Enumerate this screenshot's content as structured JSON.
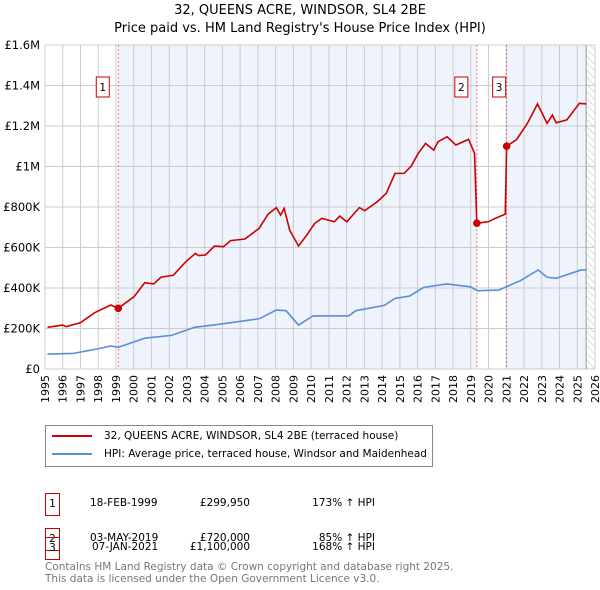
{
  "title": "32, QUEENS ACRE, WINDSOR, SL4 2BE",
  "subtitle": "Price paid vs. HM Land Registry's House Price Index (HPI)",
  "chart_data": {
    "type": "line",
    "title": "32, QUEENS ACRE, WINDSOR, SL4 2BE",
    "subtitle": "Price paid vs. HM Land Registry's House Price Index (HPI)",
    "xlim": [
      1995,
      2026
    ],
    "ylim": [
      0,
      1600000
    ],
    "xticks": [
      "1995",
      "1996",
      "1997",
      "1998",
      "1999",
      "2000",
      "2001",
      "2002",
      "2003",
      "2004",
      "2005",
      "2006",
      "2007",
      "2008",
      "2009",
      "2010",
      "2011",
      "2012",
      "2013",
      "2014",
      "2015",
      "2016",
      "2017",
      "2018",
      "2019",
      "2020",
      "2021",
      "2022",
      "2023",
      "2024",
      "2025",
      "2026"
    ],
    "yticks": [
      {
        "v": 0,
        "l": "£0"
      },
      {
        "v": 200000,
        "l": "£200K"
      },
      {
        "v": 400000,
        "l": "£400K"
      },
      {
        "v": 600000,
        "l": "£600K"
      },
      {
        "v": 800000,
        "l": "£800K"
      },
      {
        "v": 1000000,
        "l": "£1M"
      },
      {
        "v": 1200000,
        "l": "£1.2M"
      },
      {
        "v": 1400000,
        "l": "£1.4M"
      },
      {
        "v": 1600000,
        "l": "£1.6M"
      }
    ],
    "grid": true,
    "series": [
      {
        "name": "32, QUEENS ACRE, WINDSOR, SL4 2BE (terraced house)",
        "color": "#cc0000",
        "x": [
          1995.14,
          1996.0,
          1996.19,
          1997.0,
          1997.8,
          1998.71,
          1999.13,
          2000.02,
          2000.62,
          2001.13,
          2001.53,
          2002.23,
          2002.94,
          2003.48,
          2003.65,
          2004.05,
          2004.55,
          2005.06,
          2005.46,
          2006.27,
          2007.07,
          2007.58,
          2008.04,
          2008.28,
          2008.48,
          2008.79,
          2009.29,
          2009.8,
          2010.2,
          2010.6,
          2011.31,
          2011.61,
          2012.01,
          2012.72,
          2013.02,
          2013.73,
          2014.23,
          2014.73,
          2015.24,
          2015.64,
          2016.04,
          2016.45,
          2016.91,
          2017.15,
          2017.66,
          2018.16,
          2018.87,
          2019.21,
          2019.34,
          2019.98,
          2020.38,
          2020.94,
          2021.02,
          2021.59,
          2022.19,
          2022.76,
          2023.3,
          2023.6,
          2023.81,
          2024.41,
          2025.12,
          2025.52
        ],
        "y": [
          206000,
          217000,
          209000,
          229000,
          278000,
          316000,
          299950,
          357000,
          426000,
          420000,
          453000,
          463000,
          530000,
          571000,
          560000,
          563000,
          607000,
          604000,
          634000,
          642000,
          695000,
          765000,
          797000,
          760000,
          793000,
          686000,
          607000,
          667000,
          719000,
          744000,
          727000,
          755000,
          727000,
          797000,
          782000,
          826000,
          867000,
          966000,
          966000,
          1002000,
          1065000,
          1114000,
          1081000,
          1122000,
          1147000,
          1106000,
          1134000,
          1065000,
          720000,
          727000,
          744000,
          765000,
          1100000,
          1134000,
          1213000,
          1309000,
          1213000,
          1254000,
          1216000,
          1230000,
          1312000,
          1309000
        ]
      },
      {
        "name": "HPI: Average price, terraced house, Windsor and Maidenhead",
        "color": "#5b8fd4",
        "x": [
          1995.14,
          1996.59,
          1998.0,
          1998.71,
          1999.13,
          2000.62,
          2002.13,
          2003.44,
          2004.65,
          2007.07,
          2008.04,
          2008.59,
          2009.29,
          2010.1,
          2012.11,
          2012.52,
          2014.13,
          2014.73,
          2015.54,
          2016.35,
          2017.66,
          2018.97,
          2019.37,
          2020.58,
          2021.79,
          2022.8,
          2023.3,
          2023.81,
          2025.22,
          2025.52
        ],
        "y": [
          74000,
          77000,
          100000,
          114000,
          107000,
          152000,
          166000,
          206000,
          219000,
          248000,
          291000,
          288000,
          217000,
          262000,
          262000,
          288000,
          314000,
          349000,
          360000,
          403000,
          420000,
          406000,
          387000,
          390000,
          436000,
          489000,
          453000,
          448000,
          489000,
          489000
        ]
      }
    ],
    "sales": [
      {
        "n": "1",
        "date": "18-FEB-1999",
        "x": 1999.13,
        "price": "£299,950",
        "value": 299950,
        "hpi": "173% ↑ HPI"
      },
      {
        "n": "2",
        "date": "03-MAY-2019",
        "x": 2019.34,
        "price": "£720,000",
        "value": 720000,
        "hpi": "85% ↑ HPI"
      },
      {
        "n": "3",
        "date": "07-JAN-2021",
        "x": 2021.02,
        "price": "£1,100,000",
        "value": 1100000,
        "hpi": "168% ↑ HPI"
      }
    ],
    "forecast_from": 2025.5,
    "legend": "below"
  },
  "footer": [
    "Contains HM Land Registry data © Crown copyright and database right 2025.",
    "This data is licensed under the Open Government Licence v3.0."
  ]
}
